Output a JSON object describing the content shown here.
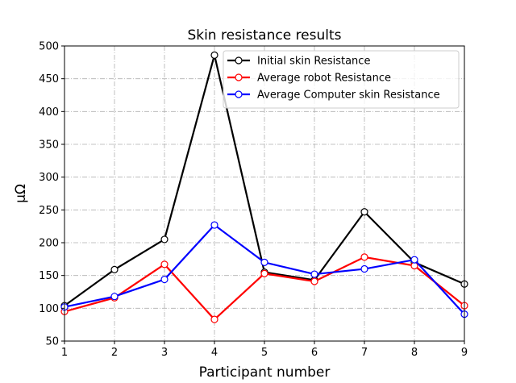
{
  "chart_data": {
    "type": "line",
    "title": "Skin resistance results",
    "xlabel": "Participant number",
    "ylabel": "μΩ",
    "x": [
      1,
      2,
      3,
      4,
      5,
      6,
      7,
      8,
      9
    ],
    "xlim": [
      1,
      9
    ],
    "ylim": [
      50,
      500
    ],
    "xticks": [
      1,
      2,
      3,
      4,
      5,
      6,
      7,
      8,
      9
    ],
    "yticks": [
      50,
      100,
      150,
      200,
      250,
      300,
      350,
      400,
      450,
      500
    ],
    "grid": true,
    "legend_position": "top-right",
    "series": [
      {
        "name": "Initial skin Resistance",
        "color": "#000000",
        "marker": "open-circle",
        "values": [
          104,
          159,
          205,
          486,
          155,
          143,
          247,
          170,
          137
        ]
      },
      {
        "name": "Average robot Resistance",
        "color": "#ff0000",
        "marker": "open-circle",
        "values": [
          95,
          116,
          167,
          83,
          153,
          141,
          178,
          165,
          104
        ]
      },
      {
        "name": "Average Computer skin Resistance",
        "color": "#0000ff",
        "marker": "open-circle",
        "values": [
          102,
          118,
          144,
          227,
          170,
          152,
          160,
          174,
          91
        ]
      }
    ]
  }
}
